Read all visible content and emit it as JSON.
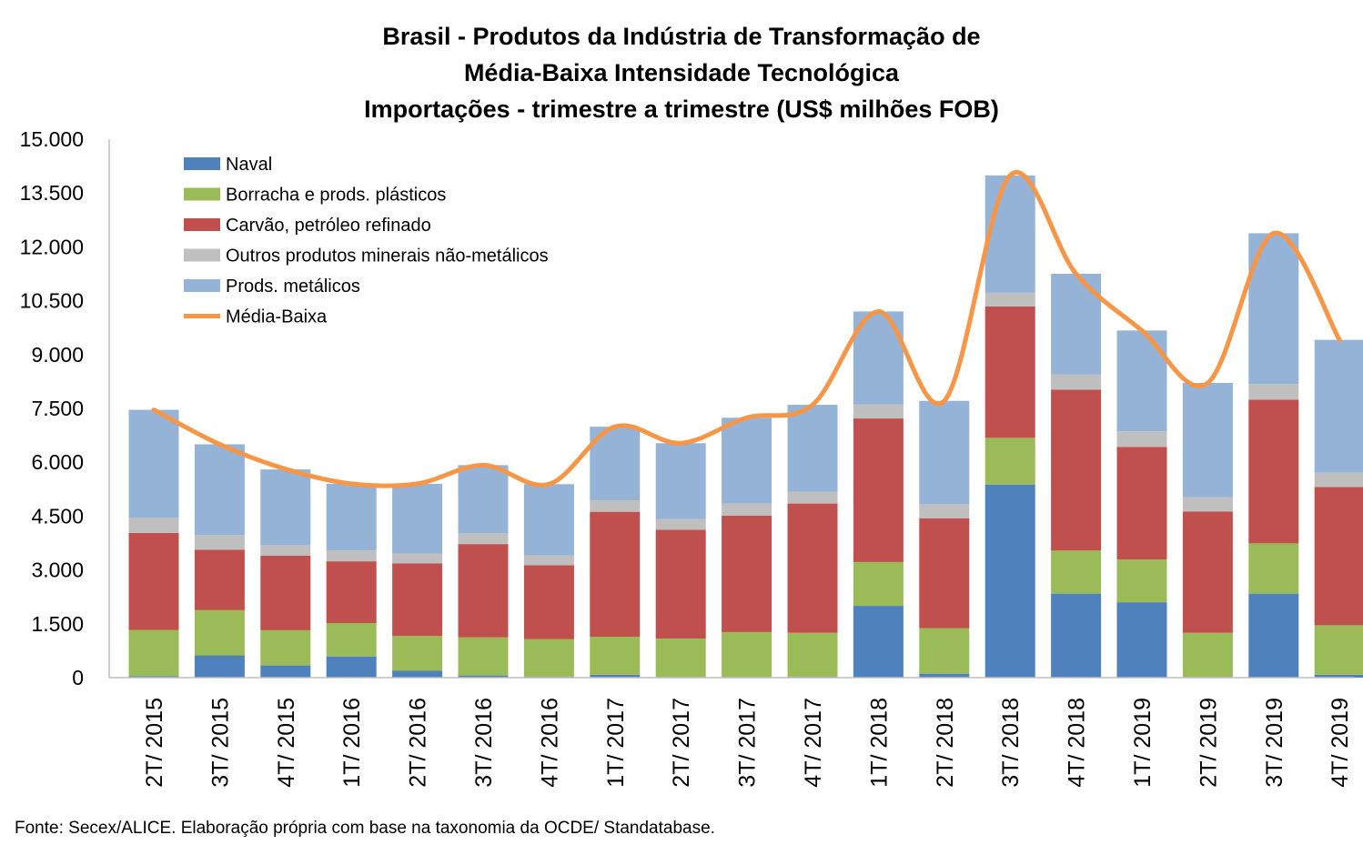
{
  "chart_data": {
    "type": "bar",
    "stacked": true,
    "title_lines": [
      "Brasil - Produtos da Indústria de Transformação de",
      "Média-Baixa Intensidade Tecnológica",
      "Importações - trimestre a trimestre (US$ milhões FOB)"
    ],
    "categories": [
      "2T/ 2015",
      "3T/ 2015",
      "4T/ 2015",
      "1T/ 2016",
      "2T/ 2016",
      "3T/ 2016",
      "4T/ 2016",
      "1T/ 2017",
      "2T/ 2017",
      "3T/ 2017",
      "4T/ 2017",
      "1T/ 2018",
      "2T/ 2018",
      "3T/ 2018",
      "4T/ 2018",
      "1T/ 2019",
      "2T/ 2019",
      "3T/ 2019",
      "4T/ 2019"
    ],
    "ylim": [
      0,
      15000
    ],
    "yticks": [
      0,
      1500,
      3000,
      4500,
      6000,
      7500,
      9000,
      10500,
      12000,
      13500,
      15000
    ],
    "ytick_labels": [
      "0",
      "1.500",
      "3.000",
      "4.500",
      "6.000",
      "7.500",
      "9.000",
      "10.500",
      "12.000",
      "13.500",
      "15.000"
    ],
    "series": [
      {
        "name": "Naval",
        "color": "#4F81BD",
        "values": [
          40,
          620,
          340,
          590,
          190,
          60,
          30,
          80,
          20,
          20,
          30,
          2000,
          110,
          5380,
          2340,
          2100,
          20,
          2340,
          80
        ]
      },
      {
        "name": "Borracha e prods. plásticos",
        "color": "#9BBB59",
        "values": [
          1290,
          1260,
          980,
          930,
          970,
          1060,
          1040,
          1060,
          1070,
          1250,
          1220,
          1220,
          1270,
          1300,
          1200,
          1190,
          1230,
          1400,
          1380
        ]
      },
      {
        "name": "Carvão, petróleo refinado",
        "color": "#C0504D",
        "values": [
          2700,
          1680,
          2080,
          1720,
          2020,
          2600,
          2060,
          3480,
          3030,
          3240,
          3600,
          4000,
          3060,
          3660,
          4480,
          3140,
          3380,
          4000,
          3850
        ]
      },
      {
        "name": "Outros produtos minerais não-metálicos",
        "color": "#BFBFBF",
        "values": [
          420,
          410,
          290,
          300,
          280,
          300,
          280,
          320,
          300,
          340,
          330,
          390,
          390,
          380,
          430,
          430,
          400,
          440,
          400
        ]
      },
      {
        "name": "Prods. metálicos",
        "color": "#95B3D7",
        "values": [
          3010,
          2530,
          2110,
          1860,
          1940,
          1900,
          1980,
          2050,
          2110,
          2390,
          2420,
          2590,
          2880,
          3270,
          2800,
          2810,
          3180,
          4200,
          3700
        ]
      }
    ],
    "line_series": {
      "name": "Média-Baixa",
      "color": "#F79646",
      "values": [
        7460,
        6500,
        5810,
        5400,
        5400,
        5920,
        5390,
        6990,
        6530,
        7240,
        7600,
        10200,
        7710,
        13990,
        11250,
        9670,
        8210,
        12380,
        9410
      ]
    },
    "grid": false,
    "legend_position": "top-left"
  },
  "source": "Fonte: Secex/ALICE. Elaboração própria com base na taxonomia da OCDE/ Standatabase."
}
